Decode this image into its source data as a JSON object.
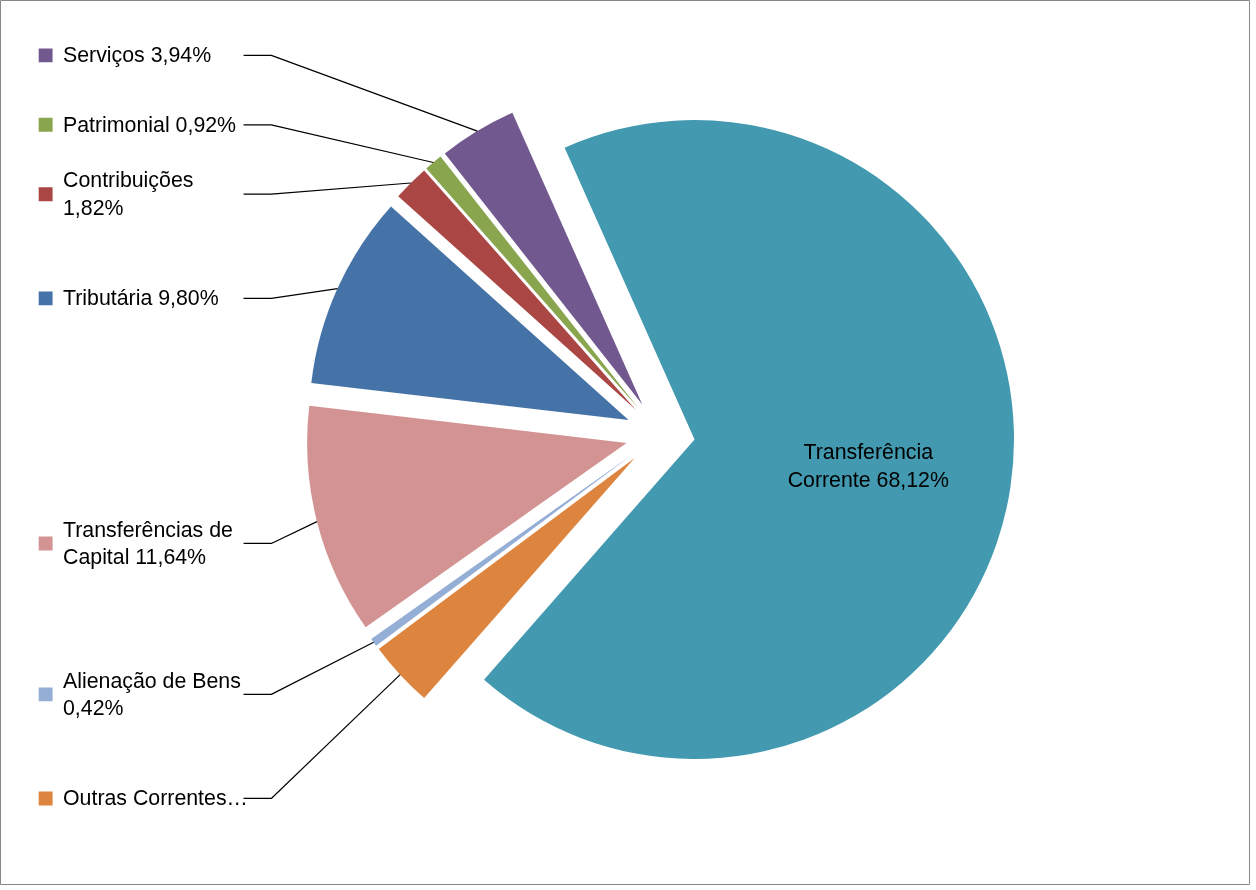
{
  "chart_data": {
    "type": "pie",
    "categories": [
      "Transferência Corrente",
      "Outras Correntes…",
      "Alienação de Bens",
      "Transferências de Capital",
      "Tributária",
      "Contribuições",
      "Patrimonial",
      "Serviços"
    ],
    "values": [
      68.12,
      3.34,
      0.42,
      11.64,
      9.8,
      1.82,
      0.92,
      3.94
    ],
    "value_labels": [
      "68,12%",
      null,
      "0,42%",
      "11,64%",
      "9,80%",
      "1,82%",
      "0,92%",
      "3,94%"
    ],
    "legend": "left",
    "colors": [
      "#4299b0",
      "#dd843f",
      "#94aed5",
      "#d39392",
      "#4572a7",
      "#aa4643",
      "#89a54e",
      "#71588f"
    ]
  }
}
